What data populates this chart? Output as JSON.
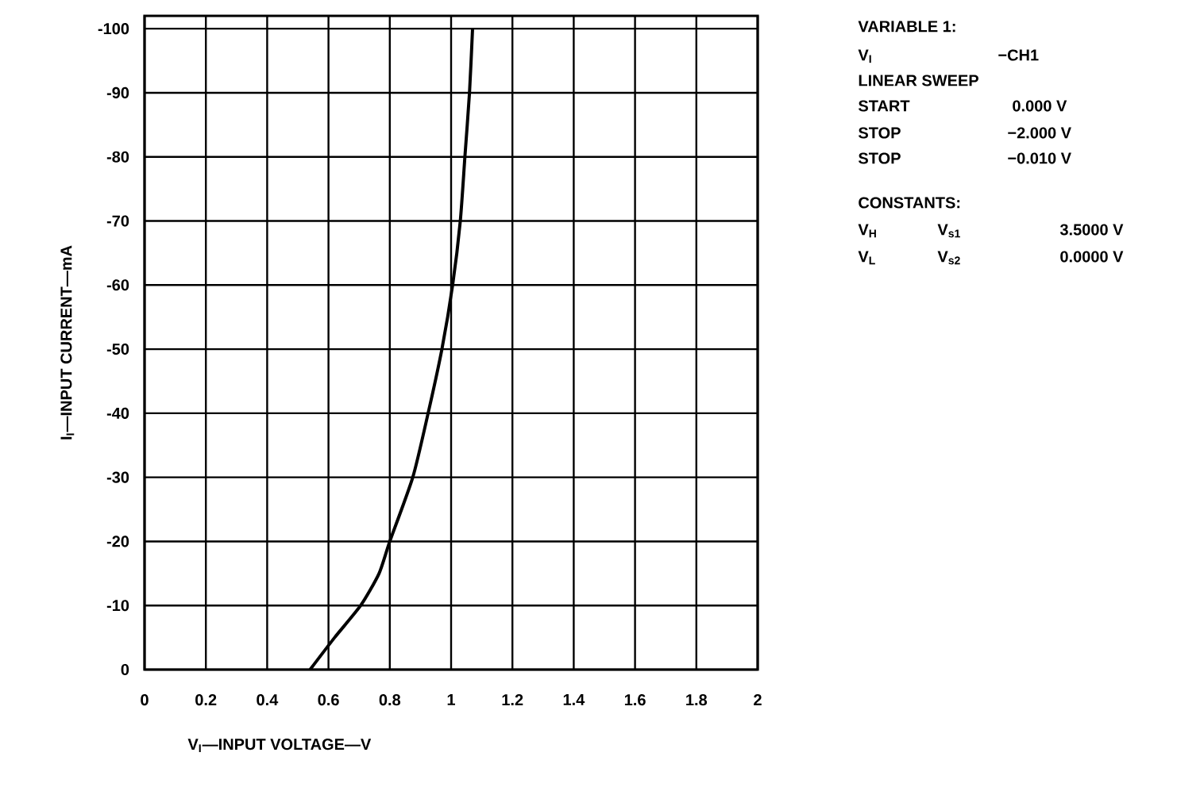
{
  "chart_data": {
    "type": "line",
    "xlabel": "V$_{I}$—INPUT VOLTAGE—V",
    "ylabel": "I$_{I}$—INPUT CURRENT—mA",
    "x": [
      0.54,
      0.62,
      0.705,
      0.765,
      0.8,
      0.875,
      0.925,
      0.97,
      1.005,
      1.03,
      1.045,
      1.06,
      1.07
    ],
    "values": [
      0,
      -5,
      -10,
      -15,
      -20,
      -30,
      -40,
      -50,
      -60,
      -70,
      -80,
      -90,
      -100
    ],
    "color": "#000000",
    "xlim": [
      0,
      2
    ],
    "xticks": [
      0,
      0.2,
      0.4,
      0.6,
      0.8,
      1,
      1.2,
      1.4,
      1.6,
      1.8,
      2
    ],
    "ylim": [
      0,
      -102
    ],
    "yticks": [
      0,
      -10,
      -20,
      -30,
      -40,
      -50,
      -60,
      -70,
      -80,
      -90,
      -100
    ],
    "grid": true,
    "annotations": [
      "VARIABLE 1:",
      "V$_{I}$",
      "−CH1",
      "LINEAR SWEEP",
      "START",
      "0.000 V",
      "STOP",
      "−2.000 V",
      "STOP",
      "−0.010 V",
      "CONSTANTS:",
      "V$_{H}$",
      "V$_{s1}$",
      "3.5000 V",
      "V$_{L}$",
      "V$_{s2}$",
      "0.0000 V"
    ]
  }
}
